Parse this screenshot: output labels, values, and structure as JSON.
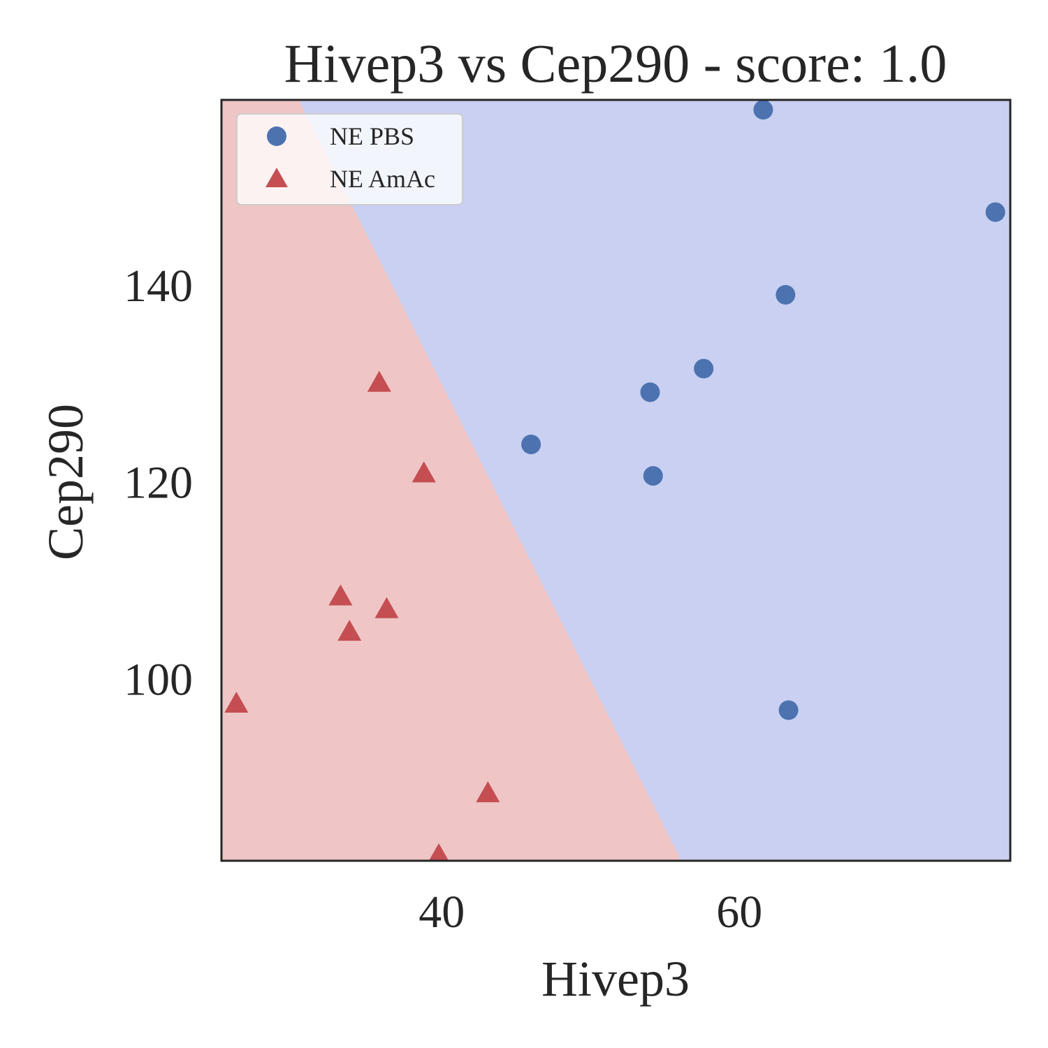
{
  "chart_data": {
    "type": "scatter",
    "title": "Hivep3 vs Cep290 - score: 1.0",
    "xlabel": "Hivep3",
    "ylabel": "Cep290",
    "xlim": [
      25.2,
      78.2
    ],
    "ylim": [
      81.5,
      158.8
    ],
    "xticks": [
      40,
      60
    ],
    "yticks": [
      100,
      120,
      140
    ],
    "grid": false,
    "legend_position": "top-left",
    "decision_boundary": {
      "line": [
        [
          30.4,
          158.8
        ],
        [
          56.1,
          81.5
        ]
      ],
      "left_region_class": "NE AmAc",
      "right_region_class": "NE PBS",
      "left_color": "#efc5c5",
      "right_color": "#c9d0f1"
    },
    "series": [
      {
        "name": "NE PBS",
        "marker": "circle",
        "color": "#4c72b0",
        "points": [
          [
            61.6,
            157.8
          ],
          [
            77.2,
            147.4
          ],
          [
            63.1,
            139.0
          ],
          [
            57.6,
            131.5
          ],
          [
            54.0,
            129.1
          ],
          [
            46.0,
            123.8
          ],
          [
            54.2,
            120.6
          ],
          [
            63.3,
            96.8
          ]
        ]
      },
      {
        "name": "NE AmAc",
        "marker": "triangle",
        "color": "#c44e52",
        "points": [
          [
            35.8,
            130.0
          ],
          [
            38.8,
            120.8
          ],
          [
            33.2,
            108.3
          ],
          [
            36.3,
            107.0
          ],
          [
            33.8,
            104.7
          ],
          [
            26.2,
            97.4
          ],
          [
            43.1,
            88.3
          ],
          [
            39.8,
            82.0
          ]
        ]
      }
    ]
  }
}
